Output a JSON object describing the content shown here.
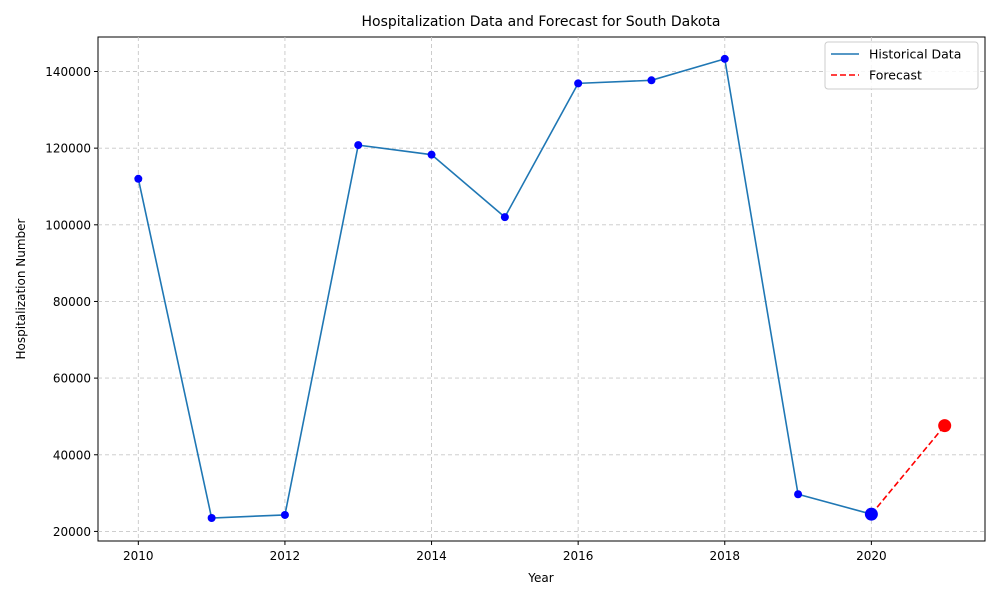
{
  "chart_data": {
    "type": "line",
    "title": "Hospitalization Data and Forecast for South Dakota",
    "xlabel": "Year",
    "ylabel": "Hospitalization Number",
    "xlim": [
      2009.45,
      2021.55
    ],
    "ylim": [
      17500,
      149000
    ],
    "x_ticks": [
      2010,
      2012,
      2014,
      2016,
      2018,
      2020
    ],
    "x_tick_labels": [
      "2010",
      "2012",
      "2014",
      "2016",
      "2018",
      "2020"
    ],
    "y_ticks": [
      20000,
      40000,
      60000,
      80000,
      100000,
      120000,
      140000
    ],
    "y_tick_labels": [
      "20000",
      "40000",
      "60000",
      "80000",
      "100000",
      "120000",
      "140000"
    ],
    "grid": true,
    "legend_position": "top-right",
    "series": [
      {
        "name": "Historical Data",
        "style": "solid",
        "color": "#1f77b4",
        "marker_color": "#0000ff",
        "x": [
          2010,
          2011,
          2012,
          2013,
          2014,
          2015,
          2016,
          2017,
          2018,
          2019,
          2020
        ],
        "y": [
          112000,
          23500,
          24300,
          120800,
          118300,
          102000,
          136900,
          137700,
          143300,
          29700,
          24500
        ]
      },
      {
        "name": "Forecast",
        "style": "dashed",
        "color": "#ff0000",
        "x": [
          2020,
          2021
        ],
        "y": [
          24500,
          47600
        ]
      }
    ],
    "highlight_points": [
      {
        "x": 2020,
        "y": 24500,
        "color": "#0000ff"
      },
      {
        "x": 2021,
        "y": 47600,
        "color": "#ff0000"
      }
    ]
  }
}
